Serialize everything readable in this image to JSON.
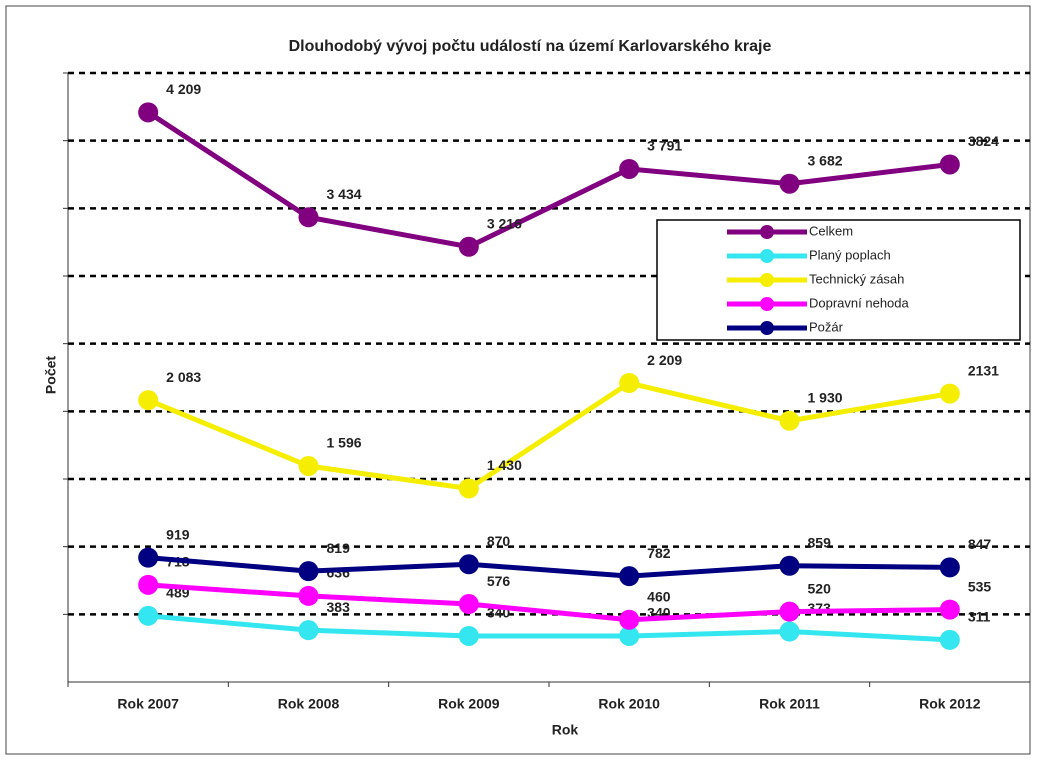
{
  "chart_data": {
    "type": "line",
    "title": "Dlouhodobý vývoj počtu událostí na území Karlovarského kraje",
    "x_label": "Rok",
    "y_label": "Počet",
    "categories": [
      "Rok 2007",
      "Rok 2008",
      "Rok 2009",
      "Rok 2010",
      "Rok 2011",
      "Rok 2012"
    ],
    "ylim": [
      0,
      4500
    ],
    "yticks": [
      500,
      1000,
      1500,
      2000,
      2500,
      3000,
      3500,
      4000,
      4500
    ],
    "grid": true,
    "legend": "right",
    "series": [
      {
        "name": "Celkem",
        "color": "#800080",
        "values": [
          4209,
          3434,
          3216,
          3791,
          3682,
          3824
        ],
        "value_labels": [
          "4 209",
          "3 434",
          "3 216",
          "3 791",
          "3 682",
          "3824"
        ]
      },
      {
        "name": "Planý poplach",
        "color": "#33e6f0",
        "values": [
          489,
          383,
          340,
          340,
          373,
          311
        ]
      },
      {
        "name": "Technický zásah",
        "color": "#f5ee00",
        "values": [
          2083,
          1596,
          1430,
          2209,
          1930,
          2131
        ],
        "value_labels": [
          "2 083",
          "1 596",
          "1 430",
          "2 209",
          "1 930",
          "2131"
        ]
      },
      {
        "name": "Dopravní nehoda",
        "color": "#ff00ff",
        "values": [
          718,
          636,
          576,
          460,
          520,
          535
        ]
      },
      {
        "name": "Požár",
        "color": "#000080",
        "values": [
          919,
          819,
          870,
          782,
          859,
          847
        ]
      }
    ]
  }
}
